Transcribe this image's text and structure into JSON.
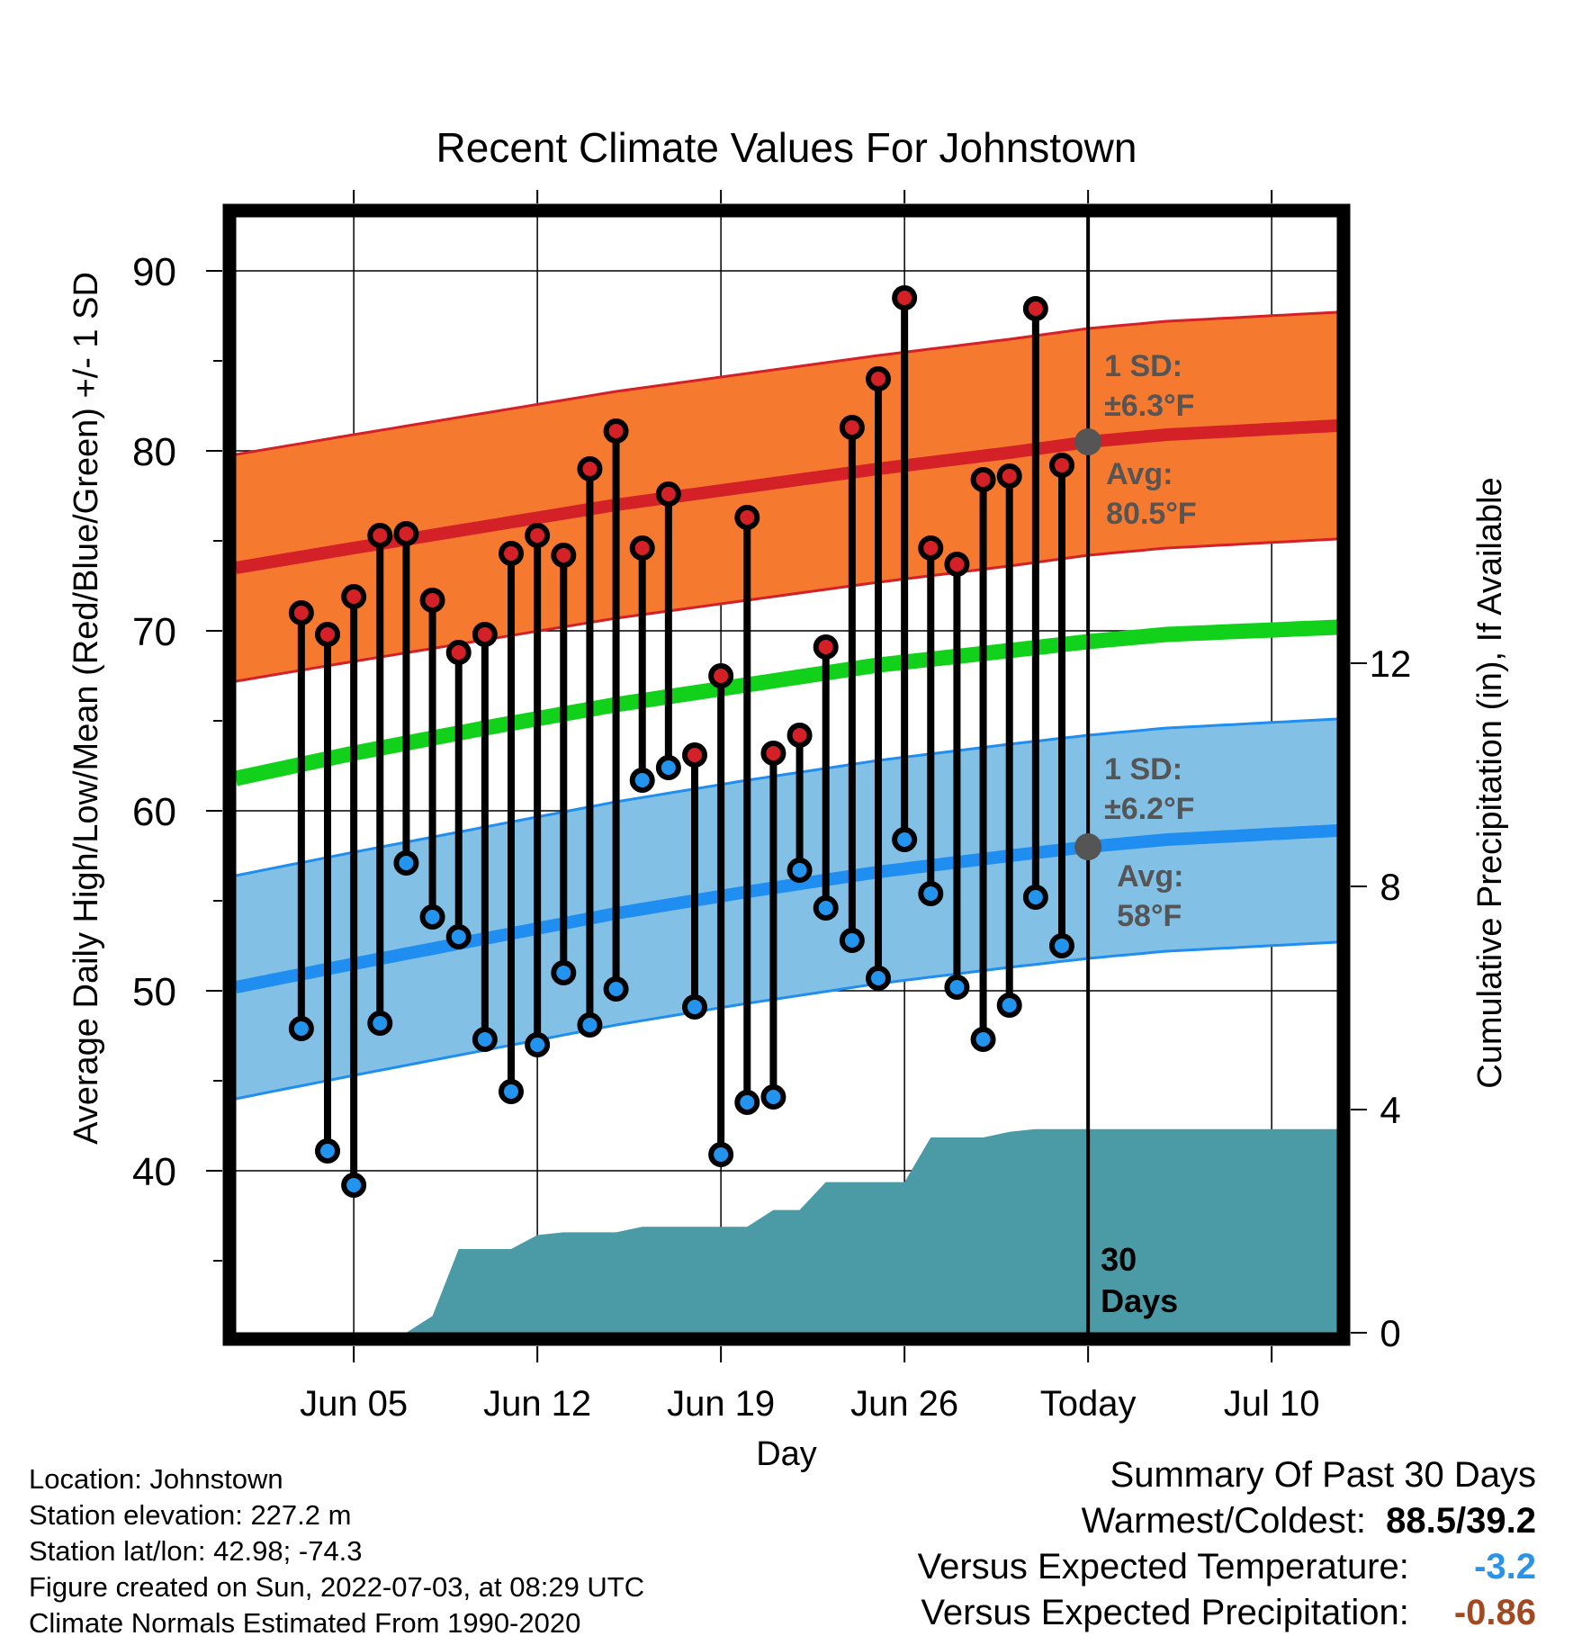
{
  "chart_data": {
    "type": "line",
    "title": "Recent Climate Values For Johnstown",
    "xlabel": "Day",
    "ylabel": "Average Daily High/Low/Mean (Red/Blue/Green) +/- 1 SD",
    "y2label": "Cumulative Precipitation (in), If Available",
    "ylim": [
      31,
      93
    ],
    "y2lim": [
      0,
      20
    ],
    "xlim": [
      0.5,
      42.5
    ],
    "x_tick_labels": [
      {
        "day": 5,
        "label": "Jun 05"
      },
      {
        "day": 12,
        "label": "Jun 12"
      },
      {
        "day": 19,
        "label": "Jun 19"
      },
      {
        "day": 26,
        "label": "Jun 26"
      },
      {
        "day": 33,
        "label": "Today"
      },
      {
        "day": 40,
        "label": "Jul 10"
      }
    ],
    "y_ticks": [
      40,
      50,
      60,
      70,
      80,
      90
    ],
    "y2_ticks": [
      0,
      4,
      8,
      12
    ],
    "grid": true,
    "today_day": 33,
    "colors": {
      "high_band": "#f57a30",
      "high_mean": "#d42027",
      "low_band": "#82c0e6",
      "low_mean": "#1f8ef0",
      "mean": "#12d11a",
      "precip": "#4a9ba5",
      "high_dot": "#d42027",
      "low_dot": "#2394ee",
      "cold_value": "#2a93e8",
      "precip_value": "#a14a22"
    },
    "normals": {
      "days": [
        0.5,
        5,
        10,
        15,
        20,
        25,
        30,
        33,
        36,
        42.5
      ],
      "high_mean": [
        73.5,
        74.6,
        75.8,
        77.0,
        78.0,
        79.0,
        79.9,
        80.5,
        80.9,
        81.4
      ],
      "high_sd": 6.3,
      "low_mean": [
        50.2,
        51.5,
        52.9,
        54.3,
        55.5,
        56.6,
        57.5,
        58.0,
        58.4,
        58.9
      ],
      "low_sd": 6.2,
      "mean": [
        61.8,
        63.2,
        64.6,
        65.9,
        67.0,
        68.1,
        68.9,
        69.4,
        69.8,
        70.2
      ]
    },
    "series": [
      {
        "name": "High",
        "x": [
          3,
          4,
          5,
          6,
          7,
          8,
          9,
          10,
          11,
          12,
          13,
          14,
          15,
          16,
          17,
          18,
          19,
          20,
          21,
          22,
          23,
          24,
          25,
          26,
          27,
          28,
          29,
          30,
          31,
          32
        ],
        "values": [
          71.0,
          69.8,
          71.9,
          75.3,
          75.4,
          71.7,
          68.8,
          69.8,
          74.3,
          75.3,
          74.2,
          79.0,
          81.1,
          74.6,
          77.6,
          63.1,
          67.5,
          76.3,
          63.2,
          64.2,
          69.1,
          81.3,
          84.0,
          88.5,
          74.6,
          73.7,
          78.4,
          78.6,
          87.9,
          79.2
        ]
      },
      {
        "name": "Low",
        "x": [
          3,
          4,
          5,
          6,
          7,
          8,
          9,
          10,
          11,
          12,
          13,
          14,
          15,
          16,
          17,
          18,
          19,
          20,
          21,
          22,
          23,
          24,
          25,
          26,
          27,
          28,
          29,
          30,
          31,
          32
        ],
        "values": [
          47.9,
          41.1,
          39.2,
          48.2,
          57.1,
          54.1,
          53.0,
          47.3,
          44.4,
          47.0,
          51.0,
          48.1,
          50.1,
          61.7,
          62.4,
          49.1,
          40.9,
          43.8,
          44.1,
          56.7,
          54.6,
          52.8,
          50.7,
          58.4,
          55.4,
          50.2,
          47.3,
          49.2,
          55.2,
          52.5
        ]
      }
    ],
    "precip_cumulative": {
      "x": [
        0.5,
        3.5,
        4.5,
        6,
        7,
        8,
        9,
        10,
        11,
        12,
        13,
        14,
        15,
        16,
        17,
        18,
        19,
        20,
        21,
        22,
        23,
        24,
        25,
        26,
        27,
        28,
        29,
        30,
        31,
        32,
        33,
        42.5
      ],
      "values": [
        0,
        0,
        0,
        0,
        0,
        0.3,
        1.5,
        1.5,
        1.5,
        1.75,
        1.8,
        1.8,
        1.8,
        1.9,
        1.9,
        1.9,
        1.9,
        1.9,
        2.2,
        2.2,
        2.7,
        2.7,
        2.7,
        2.7,
        3.5,
        3.5,
        3.5,
        3.6,
        3.65,
        3.65,
        3.65,
        3.65
      ]
    },
    "annotations": {
      "high_sd_label": "1 SD:",
      "high_sd_value": "±6.3°F",
      "high_avg_label": "Avg:",
      "high_avg_value": "80.5°F",
      "low_sd_label": "1 SD:",
      "low_sd_value": "±6.2°F",
      "low_avg_label": "Avg:",
      "low_avg_value": "58°F",
      "days_number": "30",
      "days_word": "Days"
    }
  },
  "footer": {
    "location": "Location: Johnstown",
    "elevation": "Station elevation: 227.2 m",
    "latlon": "Station lat/lon: 42.98; -74.3",
    "created": "Figure created on Sun, 2022-07-03, at 08:29 UTC",
    "normals": "Climate Normals Estimated From 1990-2020"
  },
  "summary": {
    "heading": "Summary Of Past 30 Days",
    "warm_cold_label": "Warmest/Coldest:",
    "warm_cold_value": "88.5/39.2",
    "temp_label": "Versus Expected Temperature:",
    "temp_value": "-3.2",
    "precip_label": "Versus Expected Precipitation:",
    "precip_value": "-0.86"
  }
}
